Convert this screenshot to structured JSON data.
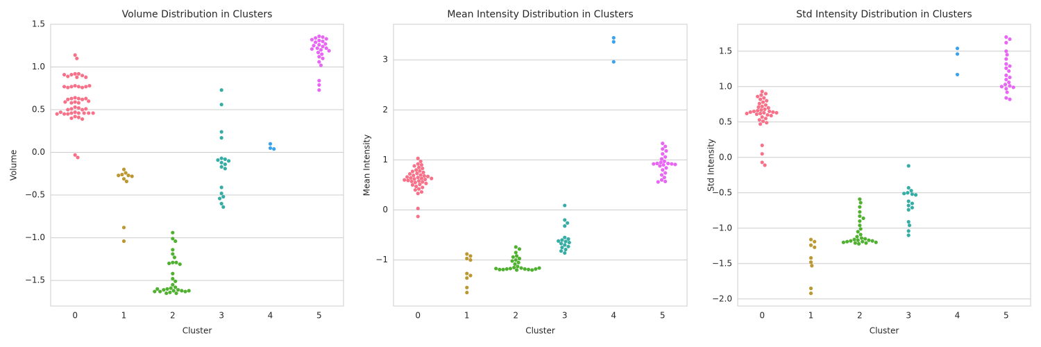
{
  "chart_data": [
    {
      "type": "swarm",
      "title": "Volume Distribution in Clusters",
      "xlabel": "Cluster",
      "ylabel": "Volume",
      "categories": [
        "0",
        "1",
        "2",
        "3",
        "4",
        "5"
      ],
      "colors": [
        "#f77189",
        "#bb9832",
        "#50b131",
        "#36ada4",
        "#3ba3ec",
        "#e866f4"
      ],
      "ylim": [
        -1.8,
        1.5
      ],
      "yticks": [
        {
          "value": -1.5,
          "label": "−1.5"
        },
        {
          "value": -1,
          "label": "−1.0"
        },
        {
          "value": -0.5,
          "label": "−0.5"
        },
        {
          "value": 0,
          "label": "0.0"
        },
        0.5,
        {
          "value": 1,
          "label": "1.0"
        },
        1.5
      ],
      "grid": true,
      "values": [
        [
          1.14,
          1.1,
          0.92,
          0.92,
          0.91,
          0.9,
          0.89,
          0.88,
          0.88,
          0.91,
          0.78,
          0.77,
          0.77,
          0.76,
          0.76,
          0.77,
          0.77,
          0.78,
          0.64,
          0.63,
          0.63,
          0.62,
          0.62,
          0.63,
          0.59,
          0.59,
          0.58,
          0.58,
          0.6,
          0.53,
          0.52,
          0.51,
          0.5,
          0.5,
          0.51,
          0.47,
          0.46,
          0.46,
          0.46,
          0.45,
          0.45,
          0.46,
          0.47,
          0.46,
          0.45,
          0.42,
          0.41,
          0.4,
          0.39,
          -0.03,
          -0.06
        ],
        [
          -0.2,
          -0.24,
          -0.26,
          -0.27,
          -0.27,
          -0.28,
          -0.31,
          -0.34,
          -0.88,
          -1.04
        ],
        [
          -0.94,
          -1.01,
          -1.04,
          -1.14,
          -1.19,
          -1.23,
          -1.29,
          -1.29,
          -1.3,
          -1.31,
          -1.42,
          -1.48,
          -1.51,
          -1.55,
          -1.58,
          -1.59,
          -1.6,
          -1.61,
          -1.61,
          -1.62,
          -1.62,
          -1.63,
          -1.63,
          -1.64,
          -1.65,
          -1.65,
          -1.62,
          -1.6,
          -1.63
        ],
        [
          0.73,
          0.56,
          0.24,
          0.17,
          -0.07,
          -0.08,
          -0.09,
          -0.1,
          -0.12,
          -0.14,
          -0.17,
          -0.19,
          -0.41,
          -0.48,
          -0.52,
          -0.54,
          -0.6,
          -0.64
        ],
        [
          0.1,
          0.05,
          0.04
        ],
        [
          1.36,
          1.35,
          1.34,
          1.33,
          1.32,
          1.31,
          1.3,
          1.29,
          1.27,
          1.26,
          1.25,
          1.24,
          1.22,
          1.22,
          1.21,
          1.2,
          1.19,
          1.17,
          1.15,
          1.12,
          1.1,
          1.06,
          1.02,
          0.84,
          0.79,
          0.73
        ]
      ]
    },
    {
      "type": "swarm",
      "title": "Mean Intensity Distribution in Clusters",
      "xlabel": "Cluster",
      "ylabel": "Mean Intensity",
      "categories": [
        "0",
        "1",
        "2",
        "3",
        "4",
        "5"
      ],
      "colors": [
        "#f77189",
        "#bb9832",
        "#50b131",
        "#36ada4",
        "#3ba3ec",
        "#e866f4"
      ],
      "ylim": [
        -1.92,
        3.71
      ],
      "yticks": [
        {
          "value": -1,
          "label": "−1"
        },
        0,
        1,
        2,
        3
      ],
      "grid": true,
      "values": [
        [
          1.03,
          0.97,
          0.92,
          0.9,
          0.88,
          0.85,
          0.83,
          0.8,
          0.78,
          0.77,
          0.75,
          0.73,
          0.72,
          0.7,
          0.69,
          0.68,
          0.67,
          0.66,
          0.65,
          0.64,
          0.63,
          0.63,
          0.62,
          0.61,
          0.6,
          0.59,
          0.58,
          0.57,
          0.56,
          0.55,
          0.53,
          0.51,
          0.5,
          0.47,
          0.45,
          0.42,
          0.4,
          0.36,
          0.33,
          0.03,
          -0.13
        ],
        [
          -0.88,
          -0.92,
          -0.97,
          -1.0,
          -1.27,
          -1.31,
          -1.36,
          -1.55,
          -1.65
        ],
        [
          -0.74,
          -0.78,
          -0.85,
          -0.92,
          -0.94,
          -0.97,
          -1.0,
          -1.02,
          -1.05,
          -1.08,
          -1.13,
          -1.15,
          -1.16,
          -1.17,
          -1.18,
          -1.18,
          -1.19,
          -1.19,
          -1.2,
          -1.2,
          -1.19,
          -1.18,
          -1.17,
          -1.16
        ],
        [
          0.09,
          -0.2,
          -0.26,
          -0.32,
          -0.55,
          -0.58,
          -0.6,
          -0.62,
          -0.63,
          -0.65,
          -0.67,
          -0.7,
          -0.73,
          -0.75,
          -0.79,
          -0.82,
          -0.86
        ],
        [
          3.44,
          3.36,
          2.96
        ],
        [
          1.33,
          1.27,
          1.22,
          1.18,
          1.12,
          1.06,
          1.02,
          0.97,
          0.95,
          0.93,
          0.93,
          0.92,
          0.92,
          0.91,
          0.9,
          0.88,
          0.84,
          0.8,
          0.74,
          0.7,
          0.65,
          0.6,
          0.57,
          0.56
        ]
      ]
    },
    {
      "type": "swarm",
      "title": "Std Intensity Distribution in Clusters",
      "xlabel": "Cluster",
      "ylabel": "Std Intensity",
      "categories": [
        "0",
        "1",
        "2",
        "3",
        "4",
        "5"
      ],
      "colors": [
        "#f77189",
        "#bb9832",
        "#50b131",
        "#36ada4",
        "#3ba3ec",
        "#e866f4"
      ],
      "ylim": [
        -2.1,
        1.88
      ],
      "yticks": [
        {
          "value": -2,
          "label": "−2.0"
        },
        {
          "value": -1.5,
          "label": "−1.5"
        },
        {
          "value": -1,
          "label": "−1.0"
        },
        {
          "value": -0.5,
          "label": "−0.5"
        },
        {
          "value": 0,
          "label": "0.0"
        },
        0.5,
        {
          "value": 1,
          "label": "1.0"
        },
        1.5
      ],
      "grid": true,
      "values": [
        [
          0.93,
          0.9,
          0.88,
          0.86,
          0.84,
          0.82,
          0.8,
          0.78,
          0.76,
          0.74,
          0.72,
          0.71,
          0.7,
          0.68,
          0.67,
          0.66,
          0.65,
          0.65,
          0.64,
          0.64,
          0.63,
          0.63,
          0.62,
          0.62,
          0.61,
          0.6,
          0.59,
          0.57,
          0.55,
          0.53,
          0.51,
          0.49,
          0.47,
          0.17,
          0.05,
          -0.07,
          -0.11
        ],
        [
          -1.16,
          -1.19,
          -1.24,
          -1.27,
          -1.42,
          -1.48,
          -1.53,
          -1.85,
          -1.92
        ],
        [
          -0.59,
          -0.64,
          -0.7,
          -0.77,
          -0.83,
          -0.86,
          -0.9,
          -0.96,
          -1.01,
          -1.05,
          -1.09,
          -1.12,
          -1.14,
          -1.15,
          -1.16,
          -1.17,
          -1.17,
          -1.18,
          -1.18,
          -1.19,
          -1.19,
          -1.2,
          -1.2,
          -1.21,
          -1.21,
          -1.22
        ],
        [
          -0.12,
          -0.43,
          -0.47,
          -0.5,
          -0.51,
          -0.52,
          -0.53,
          -0.62,
          -0.65,
          -0.68,
          -0.71,
          -0.74,
          -0.91,
          -0.96,
          -1.04,
          -1.1
        ],
        [
          1.54,
          1.46,
          1.17
        ],
        [
          1.7,
          1.67,
          1.62,
          1.5,
          1.45,
          1.39,
          1.32,
          1.29,
          1.26,
          1.22,
          1.16,
          1.13,
          1.1,
          1.06,
          1.03,
          1.01,
          1.0,
          0.99,
          0.97,
          0.92,
          0.84,
          0.82
        ]
      ]
    }
  ]
}
